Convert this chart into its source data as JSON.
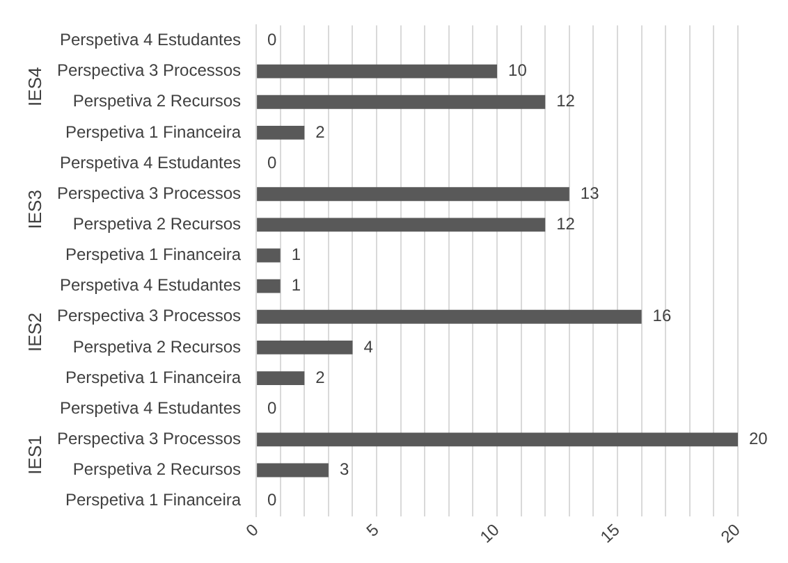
{
  "chart_data": {
    "type": "bar",
    "orientation": "horizontal",
    "categories": [
      "Perspetiva 4 Estudantes",
      "Perspectiva 3 Processos",
      "Perspetiva 2 Recursos",
      "Perspetiva 1 Financeira",
      "Perspetiva 4 Estudantes",
      "Perspectiva 3 Processos",
      "Perspetiva 2 Recursos",
      "Perspetiva 1 Financeira",
      "Perspetiva 4 Estudantes",
      "Perspectiva 3 Processos",
      "Perspetiva 2 Recursos",
      "Perspetiva 1 Financeira",
      "Perspetiva 4 Estudantes",
      "Perspectiva 3 Processos",
      "Perspetiva 2 Recursos",
      "Perspetiva 1 Financeira"
    ],
    "values": [
      0,
      10,
      12,
      2,
      0,
      13,
      12,
      1,
      1,
      16,
      4,
      2,
      0,
      20,
      3,
      0
    ],
    "color": "#595959",
    "xlim": [
      0,
      20
    ],
    "xticks": [
      0,
      {
        "value": 1,
        "label": null
      },
      {
        "value": 2,
        "label": null
      },
      {
        "value": 3,
        "label": null
      },
      {
        "value": 4,
        "label": null
      },
      5,
      {
        "value": 6,
        "label": null
      },
      {
        "value": 7,
        "label": null
      },
      {
        "value": 8,
        "label": null
      },
      {
        "value": 9,
        "label": null
      },
      10,
      {
        "value": 11,
        "label": null
      },
      {
        "value": 12,
        "label": null
      },
      {
        "value": 13,
        "label": null
      },
      {
        "value": 14,
        "label": null
      },
      15,
      {
        "value": 16,
        "label": null
      },
      {
        "value": 17,
        "label": null
      },
      {
        "value": 18,
        "label": null
      },
      {
        "value": 19,
        "label": null
      },
      20
    ],
    "grid": "x",
    "data_labels": true,
    "legend": false,
    "annotations": [
      "IES4",
      "IES3",
      "IES2",
      "IES1"
    ]
  }
}
